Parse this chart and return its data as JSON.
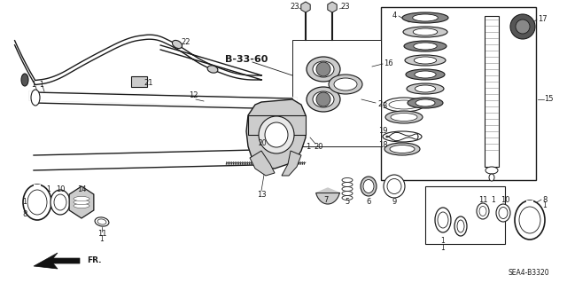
{
  "bg_color": "#ffffff",
  "line_color": "#1a1a1a",
  "gray_dark": "#555555",
  "gray_mid": "#888888",
  "gray_light": "#cccccc",
  "bold_label": "B-33-60",
  "diagram_code": "SEA4-B3320",
  "fr_label": "FR.",
  "figsize": [
    6.4,
    3.19
  ],
  "dpi": 100
}
